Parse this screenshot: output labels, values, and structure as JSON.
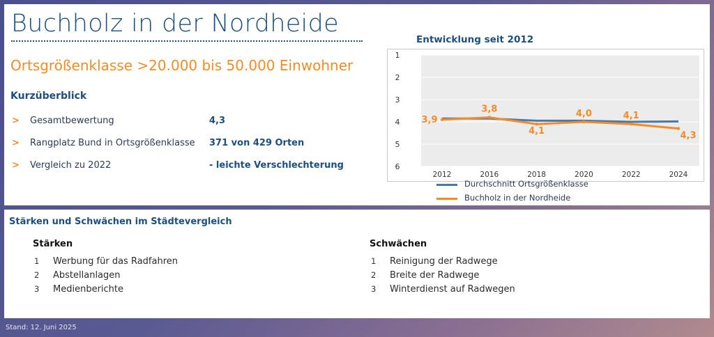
{
  "header": {
    "city": "Buchholz in der Nordheide",
    "size_class": "Ortsgrößenklasse >20.000 bis 50.000 Einwohner"
  },
  "overview": {
    "heading": "Kurzüberblick",
    "bullet_symbol": ">",
    "rows": [
      {
        "label": "Gesamtbewertung",
        "value": "4,3"
      },
      {
        "label": "Rangplatz Bund in Ortsgrößenklasse",
        "value": "371 von 429 Orten"
      },
      {
        "label": "Vergleich zu 2022",
        "value": "- leichte Verschlechterung"
      }
    ]
  },
  "chart_data": {
    "type": "line",
    "title": "Entwicklung seit 2012",
    "categories": [
      "2012",
      "2016",
      "2018",
      "2020",
      "2022",
      "2024"
    ],
    "y_ticks": [
      "1",
      "2",
      "3",
      "4",
      "5",
      "6"
    ],
    "ylim": [
      1,
      6
    ],
    "y_inverted": true,
    "grid": true,
    "legend_position": "bottom",
    "series": [
      {
        "name": "Durchschnitt Ortsgrößenklasse",
        "color": "#4a78a8",
        "values": [
          3.85,
          3.85,
          3.95,
          3.95,
          4.0,
          3.98
        ],
        "show_labels": false
      },
      {
        "name": "Buchholz in der Nordheide",
        "color": "#f28c28",
        "values": [
          3.9,
          3.8,
          4.1,
          4.0,
          4.1,
          4.3
        ],
        "labels": [
          "3,9",
          "3,8",
          "4,1",
          "4,0",
          "4,1",
          "4,3"
        ],
        "show_labels": true
      }
    ],
    "plot_background": "#ececec"
  },
  "strengths_weaknesses": {
    "heading": "Stärken und Schwächen im Städtevergleich",
    "strengths": {
      "heading": "Stärken",
      "items": [
        {
          "num": "1",
          "label": "Werbung für das Radfahren"
        },
        {
          "num": "2",
          "label": "Abstellanlagen"
        },
        {
          "num": "3",
          "label": "Medienberichte"
        }
      ]
    },
    "weaknesses": {
      "heading": "Schwächen",
      "items": [
        {
          "num": "1",
          "label": "Reinigung der Radwege"
        },
        {
          "num": "2",
          "label": "Breite der Radwege"
        },
        {
          "num": "3",
          "label": "Winterdienst auf Radwegen"
        }
      ]
    }
  },
  "footer": {
    "date": "Stand: 12. Juni 2025"
  },
  "colors": {
    "accent_orange": "#f28c28",
    "brand_blue": "#1d4e80",
    "series_blue": "#4a78a8"
  }
}
